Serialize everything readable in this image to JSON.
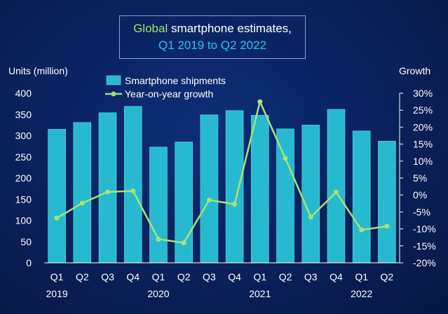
{
  "title": {
    "part1": "Global",
    "part2": " smartphone estimates,",
    "line2": "Q1 2019 to Q2 2022"
  },
  "colors": {
    "bar": "#27b9cf",
    "bar_edge": "#6fd9e8",
    "line": "#a8e07a",
    "title_accent": "#9be15a",
    "title_blue": "#2bc3e6"
  },
  "chart_data": {
    "type": "bar",
    "categories": [
      "Q1",
      "Q2",
      "Q3",
      "Q4",
      "Q1",
      "Q2",
      "Q3",
      "Q4",
      "Q1",
      "Q2",
      "Q3",
      "Q4",
      "Q1",
      "Q2"
    ],
    "year_labels": [
      {
        "label": "2019",
        "index": 0
      },
      {
        "label": "2020",
        "index": 4
      },
      {
        "label": "2021",
        "index": 8
      },
      {
        "label": "2022",
        "index": 12
      }
    ],
    "series": [
      {
        "name": "Smartphone shipments",
        "type": "bar",
        "axis": "left",
        "values": [
          315,
          331,
          354,
          369,
          273,
          285,
          349,
          359,
          348,
          316,
          325,
          362,
          311,
          287
        ]
      },
      {
        "name": "Year-on-year growth",
        "type": "line",
        "axis": "right",
        "values": [
          -6.8,
          -2.4,
          0.9,
          1.2,
          -13.0,
          -14.1,
          -1.5,
          -2.7,
          27.5,
          10.8,
          -6.5,
          0.8,
          -10.3,
          -9.2
        ]
      }
    ],
    "ylabel": "Units (million)",
    "y2label": "Growth",
    "ylim": [
      0,
      400
    ],
    "yticks": [
      "0",
      "50",
      "100",
      "150",
      "200",
      "250",
      "300",
      "350",
      "400"
    ],
    "y2lim": [
      -20,
      30
    ],
    "y2ticks": [
      "-20%",
      "-15%",
      "-10%",
      "-5%",
      "0%",
      "5%",
      "10%",
      "15%",
      "20%",
      "25%",
      "30%"
    ],
    "legend": "top-left",
    "grid": false
  }
}
